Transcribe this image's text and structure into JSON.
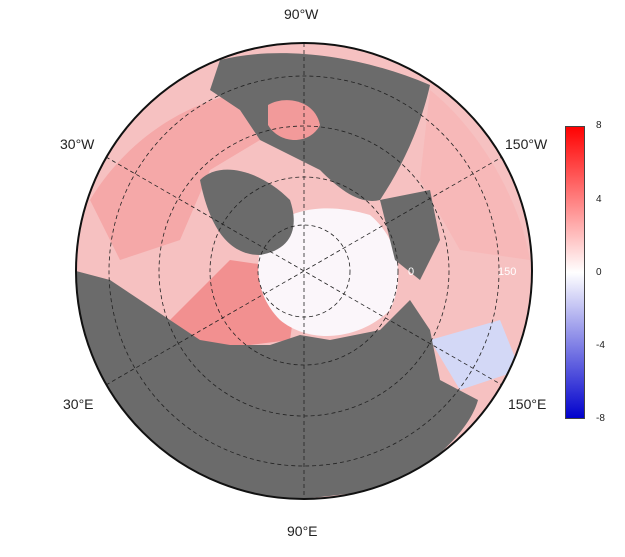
{
  "map": {
    "projection": "north polar stereographic",
    "land_color": "#6b6b6b",
    "ocean_colors": {
      "warm": "#f4a0a0",
      "neutral": "#ffffff",
      "cool": "#c8d0f8"
    },
    "graticule": "dashed"
  },
  "lon_labels": {
    "top": "90°W",
    "bottom": "90°E",
    "upper_left": "30°W",
    "upper_right": "150°W",
    "lower_left": "30°E",
    "lower_right": "150°E"
  },
  "inner_labels": {
    "lat1": "0",
    "lat2": "150"
  },
  "colorbar": {
    "ticks": [
      "8",
      "4",
      "0",
      "-4",
      "-8"
    ],
    "colors": {
      "max": "#ff0000",
      "mid": "#ffffff",
      "min": "#0000cc"
    }
  }
}
